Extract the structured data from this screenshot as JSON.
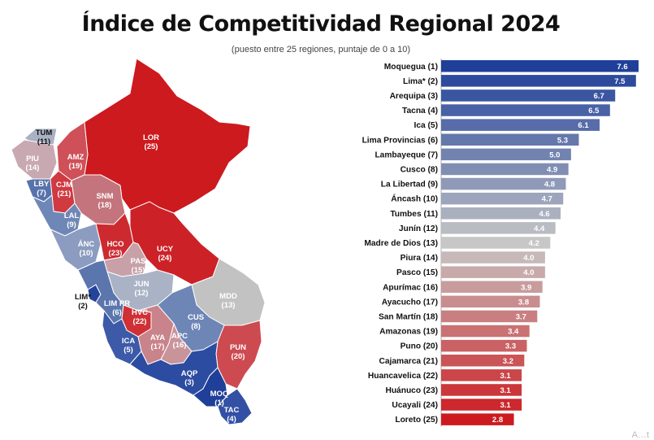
{
  "title": "Índice de Competitividad Regional 2024",
  "subtitle": "(puesto entre 25 regiones, puntaje de 0 a 10)",
  "corner_mark": "A…t",
  "colors": {
    "rank_1": "#1f3f99",
    "rank_mid": "#c7c7c7",
    "rank_25": "#cc1a1f",
    "map_stroke": "#ffffff"
  },
  "map_regions": [
    {
      "code": "TUM",
      "rank": "(11)",
      "color": "#a9b1c5"
    },
    {
      "code": "PIU",
      "rank": "(14)",
      "color": "#c9a9b1"
    },
    {
      "code": "AMZ",
      "rank": "(19)",
      "color": "#cf5058"
    },
    {
      "code": "LOR",
      "rank": "(25)",
      "color": "#cc1a1f"
    },
    {
      "code": "LBY",
      "rank": "(7)",
      "color": "#5873ac"
    },
    {
      "code": "CJM",
      "rank": "(21)",
      "color": "#d03a41"
    },
    {
      "code": "SNM",
      "rank": "(18)",
      "color": "#c4747c"
    },
    {
      "code": "LAL",
      "rank": "(9)",
      "color": "#6f87b6"
    },
    {
      "code": "ÁNC",
      "rank": "(10)",
      "color": "#8c9cc0"
    },
    {
      "code": "HCO",
      "rank": "(23)",
      "color": "#cd2a30"
    },
    {
      "code": "UCY",
      "rank": "(24)",
      "color": "#cc2227"
    },
    {
      "code": "PAS",
      "rank": "(15)",
      "color": "#c7a0a8"
    },
    {
      "code": "JUN",
      "rank": "(12)",
      "color": "#aab3c6"
    },
    {
      "code": "MDD",
      "rank": "(13)",
      "color": "#c2c2c2"
    },
    {
      "code": "LIM*",
      "rank": "(2)",
      "color": "#24449c"
    },
    {
      "code": "LIM PR",
      "rank": "(6)",
      "color": "#5b75ad"
    },
    {
      "code": "HVC",
      "rank": "(22)",
      "color": "#cf3036"
    },
    {
      "code": "CUS",
      "rank": "(8)",
      "color": "#6e86b6"
    },
    {
      "code": "ICA",
      "rank": "(5)",
      "color": "#3c5aa8"
    },
    {
      "code": "AYA",
      "rank": "(17)",
      "color": "#c9838b"
    },
    {
      "code": "APC",
      "rank": "(16)",
      "color": "#c9939a"
    },
    {
      "code": "PUN",
      "rank": "(20)",
      "color": "#cd4a51"
    },
    {
      "code": "AQP",
      "rank": "(3)",
      "color": "#2c4ca1"
    },
    {
      "code": "MOQ",
      "rank": "(1)",
      "color": "#1f3f99"
    },
    {
      "code": "TAC",
      "rank": "(4)",
      "color": "#3250a4"
    }
  ],
  "chart_data": {
    "type": "bar",
    "orientation": "horizontal",
    "title": "Índice de Competitividad Regional 2024",
    "subtitle": "(puesto entre 25 regiones, puntaje de 0 a 10)",
    "xlabel": "",
    "ylabel": "",
    "xlim": [
      0,
      7.6
    ],
    "grid": false,
    "categories": [
      "Moquegua (1)",
      "Lima* (2)",
      "Arequipa (3)",
      "Tacna (4)",
      "Ica (5)",
      "Lima Provincias (6)",
      "Lambayeque (7)",
      "Cusco (8)",
      "La Libertad (9)",
      "Áncash (10)",
      "Tumbes (11)",
      "Junín (12)",
      "Madre de Dios (13)",
      "Piura (14)",
      "Pasco (15)",
      "Apurímac (16)",
      "Ayacucho (17)",
      "San Martín (18)",
      "Amazonas (19)",
      "Puno (20)",
      "Cajamarca (21)",
      "Huancavelica (22)",
      "Huánuco (23)",
      "Ucayali (24)",
      "Loreto (25)"
    ],
    "values": [
      7.6,
      7.5,
      6.7,
      6.5,
      6.1,
      5.3,
      5.0,
      4.9,
      4.8,
      4.7,
      4.6,
      4.4,
      4.2,
      4.0,
      4.0,
      3.9,
      3.8,
      3.7,
      3.4,
      3.3,
      3.2,
      3.1,
      3.1,
      3.1,
      2.8
    ],
    "value_labels": [
      "7.6",
      "7.5",
      "6.7",
      "6.5",
      "6.1",
      "5.3",
      "5.0",
      "4.9",
      "4.8",
      "4.7",
      "4.6",
      "4.4",
      "4.2",
      "4.0",
      "4.0",
      "3.9",
      "3.8",
      "3.7",
      "3.4",
      "3.3",
      "3.2",
      "3.1",
      "3.1",
      "3.1",
      "2.8"
    ]
  }
}
